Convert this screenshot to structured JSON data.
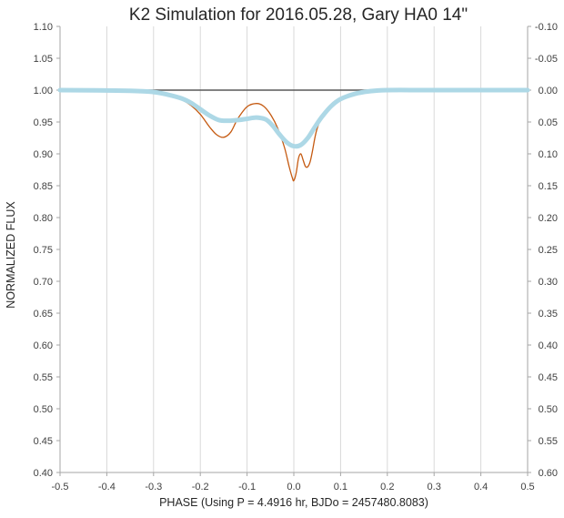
{
  "chart_data": {
    "type": "line",
    "title": "K2 Simulation for 2016.05.28, Gary HA0 14\"",
    "xlabel": "PHASE (Using P = 4.4916 hr, BJDo = 2457480.8083)",
    "ylabel": "NORMALIZED FLUX",
    "y2label": "",
    "xlim": [
      -0.5,
      0.5
    ],
    "ylim": [
      0.4,
      1.1
    ],
    "y2lim": [
      0.6,
      -0.1
    ],
    "x_ticks": [
      "-0.5",
      "-0.4",
      "-0.3",
      "-0.2",
      "-0.1",
      "0.0",
      "0.1",
      "0.2",
      "0.3",
      "0.4",
      "0.5"
    ],
    "x_tick_values": [
      -0.5,
      -0.4,
      -0.3,
      -0.2,
      -0.1,
      0.0,
      0.1,
      0.2,
      0.3,
      0.4,
      0.5
    ],
    "y_ticks": [
      "0.40",
      "0.45",
      "0.50",
      "0.55",
      "0.60",
      "0.65",
      "0.70",
      "0.75",
      "0.80",
      "0.85",
      "0.90",
      "0.95",
      "1.00",
      "1.05",
      "1.10"
    ],
    "y_tick_values": [
      0.4,
      0.45,
      0.5,
      0.55,
      0.6,
      0.65,
      0.7,
      0.75,
      0.8,
      0.85,
      0.9,
      0.95,
      1.0,
      1.05,
      1.1
    ],
    "y2_ticks": [
      "0.60",
      "0.55",
      "0.50",
      "0.45",
      "0.40",
      "0.35",
      "0.30",
      "0.25",
      "0.20",
      "0.15",
      "0.10",
      "0.05",
      "0.00",
      "-0.05",
      "-0.10"
    ],
    "grid": "vertical",
    "reference_line": 1.0,
    "colors": {
      "reference": "#595959",
      "model": "#c55a11",
      "observed": "#add8e6",
      "grid": "#d9d9d9",
      "axis": "#a6a6a6"
    },
    "series": [
      {
        "role": "model",
        "x": [
          -0.5,
          -0.35,
          -0.3,
          -0.27,
          -0.24,
          -0.22,
          -0.2,
          -0.18,
          -0.165,
          -0.15,
          -0.135,
          -0.12,
          -0.1,
          -0.08,
          -0.065,
          -0.05,
          -0.035,
          -0.02,
          -0.01,
          -0.003,
          0.0,
          0.005,
          0.01,
          0.015,
          0.02,
          0.025,
          0.03,
          0.035,
          0.04,
          0.045,
          0.05,
          0.06,
          0.08,
          0.1,
          0.13,
          0.16,
          0.18,
          0.2,
          0.3,
          0.5
        ],
        "y": [
          1.0,
          0.999,
          0.997,
          0.993,
          0.985,
          0.976,
          0.962,
          0.942,
          0.93,
          0.926,
          0.934,
          0.955,
          0.974,
          0.979,
          0.975,
          0.962,
          0.941,
          0.91,
          0.88,
          0.862,
          0.858,
          0.87,
          0.893,
          0.9,
          0.89,
          0.88,
          0.88,
          0.888,
          0.905,
          0.925,
          0.94,
          0.958,
          0.978,
          0.988,
          0.995,
          0.998,
          0.999,
          1.0,
          1.0,
          1.0
        ]
      },
      {
        "role": "observed",
        "x": [
          -0.5,
          -0.35,
          -0.3,
          -0.27,
          -0.24,
          -0.22,
          -0.2,
          -0.18,
          -0.16,
          -0.14,
          -0.12,
          -0.1,
          -0.08,
          -0.06,
          -0.045,
          -0.03,
          -0.015,
          0.0,
          0.015,
          0.03,
          0.045,
          0.06,
          0.08,
          0.1,
          0.13,
          0.16,
          0.2,
          0.3,
          0.5
        ],
        "y": [
          1.0,
          0.999,
          0.997,
          0.993,
          0.987,
          0.98,
          0.97,
          0.96,
          0.953,
          0.952,
          0.953,
          0.955,
          0.957,
          0.954,
          0.944,
          0.93,
          0.918,
          0.912,
          0.914,
          0.925,
          0.942,
          0.958,
          0.975,
          0.986,
          0.994,
          0.998,
          1.0,
          1.0,
          1.0
        ]
      }
    ]
  }
}
